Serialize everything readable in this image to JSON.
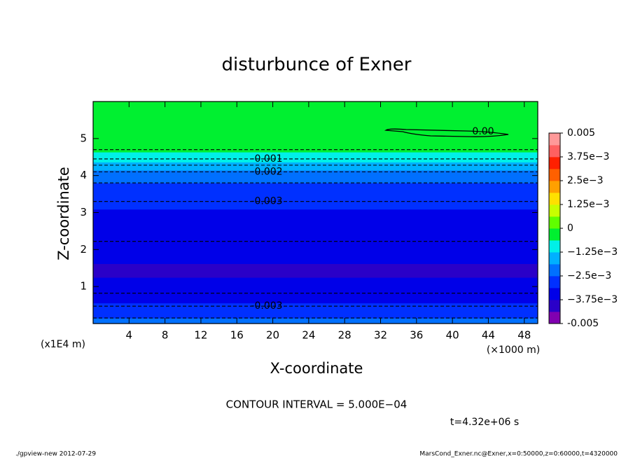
{
  "chart_data": {
    "type": "contour",
    "title": "disturbunce of Exner",
    "xlabel": "X-coordinate",
    "ylabel": "Z-coordinate",
    "x_unit": "(×1000 m)",
    "y_unit": "(x1E4 m)",
    "xlim": [
      0,
      49.5
    ],
    "xticks": [
      4,
      8,
      12,
      16,
      20,
      24,
      28,
      32,
      36,
      40,
      44,
      48
    ],
    "ylim": [
      0,
      6
    ],
    "yticks": [
      1,
      2,
      3,
      4,
      5
    ],
    "field": {
      "z": [
        0,
        0.15,
        0.47,
        0.82,
        1.0,
        1.5,
        2.22,
        2.8,
        3.3,
        3.8,
        4.1,
        4.28,
        4.45,
        4.7,
        5.0,
        5.5,
        6.0
      ],
      "values": [
        -0.0022,
        -0.0025,
        -0.003,
        -0.0035,
        -0.0037,
        -0.0038,
        -0.0035,
        -0.0033,
        -0.003,
        -0.0025,
        -0.002,
        -0.0015,
        -0.001,
        -0.0005,
        -0.0004,
        -0.0002,
        -0.0001
      ]
    },
    "contour_interval": 0.0005,
    "contour_labels": [
      {
        "text": "0.00"
      },
      {
        "text": "-0.001",
        "level": -0.001
      },
      {
        "text": "-0.002",
        "level": -0.002
      },
      {
        "text": "-0.003",
        "level": -0.003
      },
      {
        "text": "-0.003",
        "level": -0.003
      }
    ],
    "clim": [
      -0.005,
      0.005
    ],
    "colors": [
      "#8000b0",
      "#2a00c8",
      "#0000e8",
      "#0030ff",
      "#0070ff",
      "#00b0ff",
      "#00f0e8",
      "#00f030",
      "#60ff00",
      "#c8ff00",
      "#ffe000",
      "#ffa000",
      "#ff6000",
      "#ff2000",
      "#ff6060",
      "#ff9999"
    ],
    "cticks": [
      -0.005,
      {
        "value": -0.00375,
        "label": "−3.75e−3"
      },
      {
        "value": -0.0025,
        "label": "−2.5e−3"
      },
      {
        "value": -0.00125,
        "label": "−1.25e−3"
      },
      0,
      {
        "value": 0.00125,
        "label": "1.25e−3"
      },
      {
        "value": 0.0025,
        "label": "2.5e−3"
      },
      {
        "value": 0.00375,
        "label": "3.75e−3"
      },
      0.005
    ],
    "interval_text": "CONTOUR INTERVAL = 5.000E−04",
    "time_text": "t=4.32e+06 s",
    "footer_left": "./gpview-new  2012-07-29",
    "footer_right": "MarsCond_Exner.nc@Exner,x=0:50000,z=0:60000,t=4320000"
  }
}
